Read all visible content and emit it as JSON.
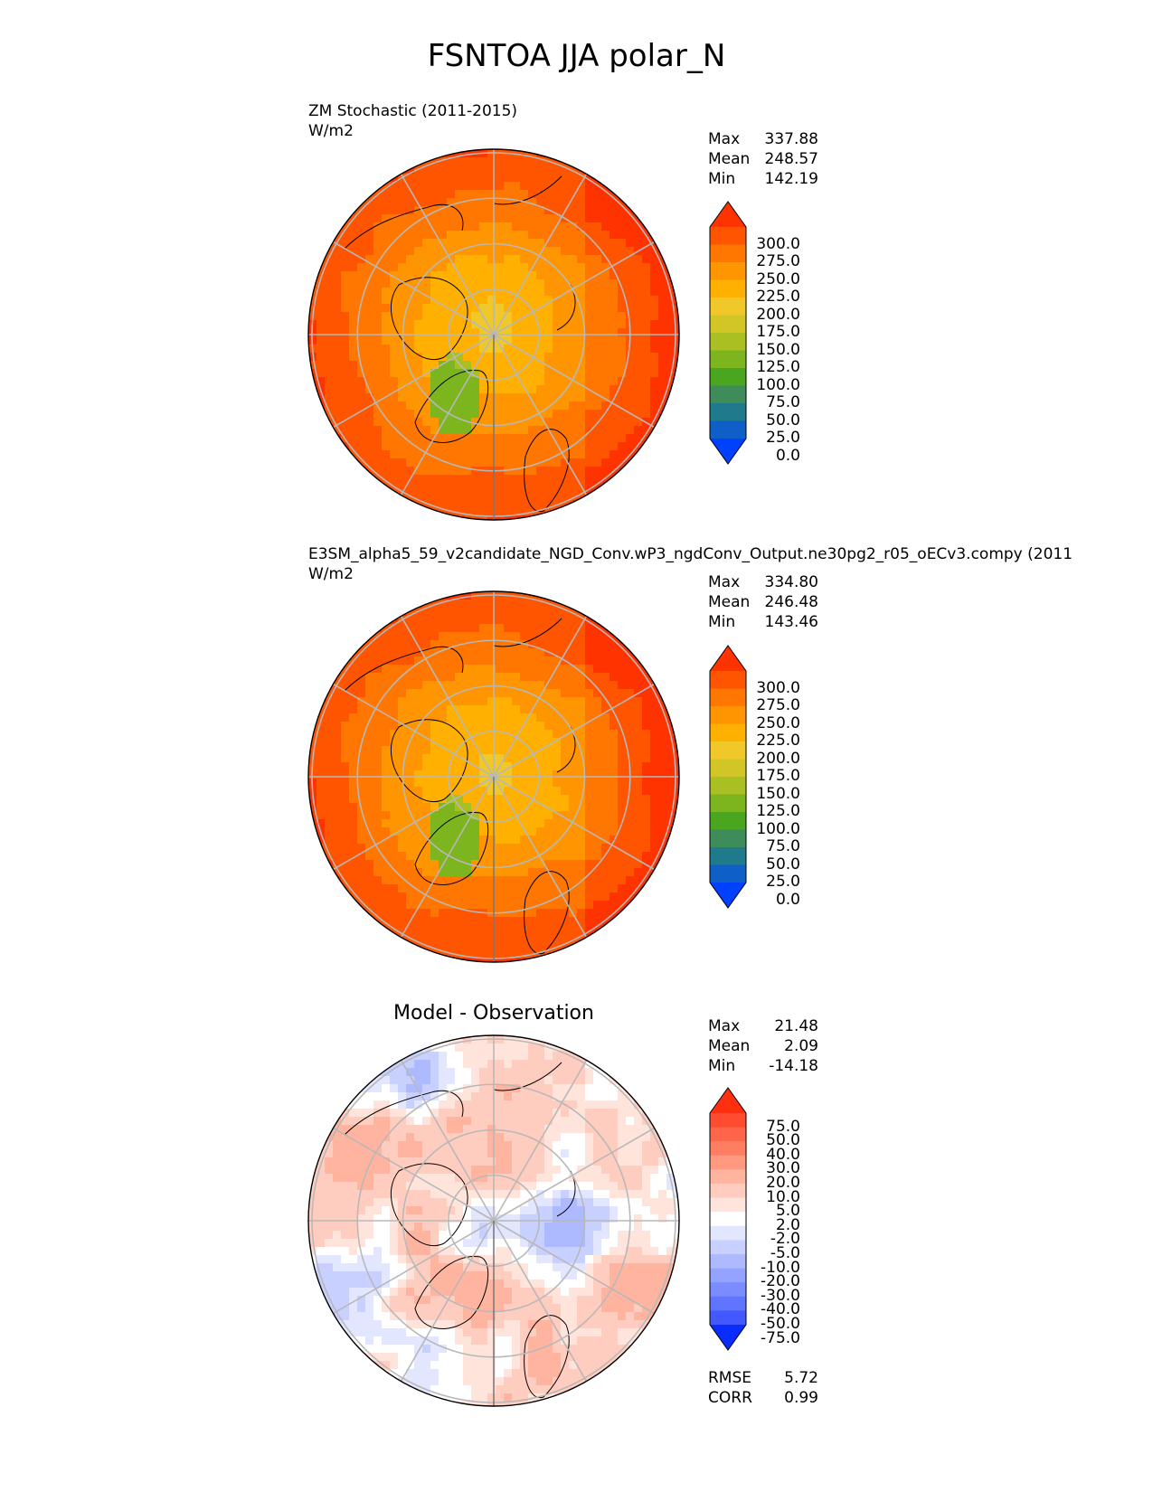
{
  "figure": {
    "title": "FSNTOA JJA polar_N"
  },
  "chart_data": [
    {
      "type": "heatmap",
      "projection": "north polar stereographic",
      "title": "ZM Stochastic (2011-2015)",
      "units": "W/m2",
      "stats": {
        "max": "337.88",
        "mean": "248.57",
        "min": "142.19"
      },
      "colorbar": {
        "levels": [
          "300.0",
          "275.0",
          "250.0",
          "225.0",
          "200.0",
          "175.0",
          "150.0",
          "125.0",
          "100.0",
          "75.0",
          "50.0",
          "25.0",
          "0.0"
        ],
        "colors": [
          "#ff3300",
          "#ff5500",
          "#ff7700",
          "#ff9500",
          "#ffb000",
          "#f0c829",
          "#d2c626",
          "#aabf22",
          "#7db51e",
          "#4aa51f",
          "#3d8c5a",
          "#1f7a8c",
          "#0e5fc8",
          "#0040ff"
        ]
      }
    },
    {
      "type": "heatmap",
      "projection": "north polar stereographic",
      "title": "E3SM_alpha5_59_v2candidate_NGD_Conv.wP3_ngdConv_Output.ne30pg2_r05_oECv3.compy (2011",
      "units": "W/m2",
      "stats": {
        "max": "334.80",
        "mean": "246.48",
        "min": "143.46"
      },
      "colorbar": {
        "levels": [
          "300.0",
          "275.0",
          "250.0",
          "225.0",
          "200.0",
          "175.0",
          "150.0",
          "125.0",
          "100.0",
          "75.0",
          "50.0",
          "25.0",
          "0.0"
        ],
        "colors": [
          "#ff3300",
          "#ff5500",
          "#ff7700",
          "#ff9500",
          "#ffb000",
          "#f0c829",
          "#d2c626",
          "#aabf22",
          "#7db51e",
          "#4aa51f",
          "#3d8c5a",
          "#1f7a8c",
          "#0e5fc8",
          "#0040ff"
        ]
      }
    },
    {
      "type": "heatmap",
      "projection": "north polar stereographic",
      "title": "Model - Observation",
      "stats": {
        "max": "21.48",
        "mean": "2.09",
        "min": "-14.18"
      },
      "metrics": {
        "rmse_label": "RMSE",
        "rmse": "5.72",
        "corr_label": "CORR",
        "corr": "0.99"
      },
      "colorbar": {
        "levels": [
          "75.0",
          "50.0",
          "40.0",
          "30.0",
          "20.0",
          "10.0",
          "5.0",
          "2.0",
          "-2.0",
          "-5.0",
          "-10.0",
          "-20.0",
          "-30.0",
          "-40.0",
          "-50.0",
          "-75.0"
        ],
        "colors": [
          "#ff3010",
          "#ff4b30",
          "#ff6548",
          "#ff7e62",
          "#ff997f",
          "#ffb4a0",
          "#ffcdbf",
          "#ffe4dc",
          "#ffffff",
          "#e2e6ff",
          "#c8d0ff",
          "#aebaff",
          "#94a3ff",
          "#7a8cff",
          "#5f74ff",
          "#4458ff",
          "#0a2dff"
        ]
      }
    }
  ],
  "labels": {
    "max": "Max",
    "mean": "Mean",
    "min": "Min"
  }
}
